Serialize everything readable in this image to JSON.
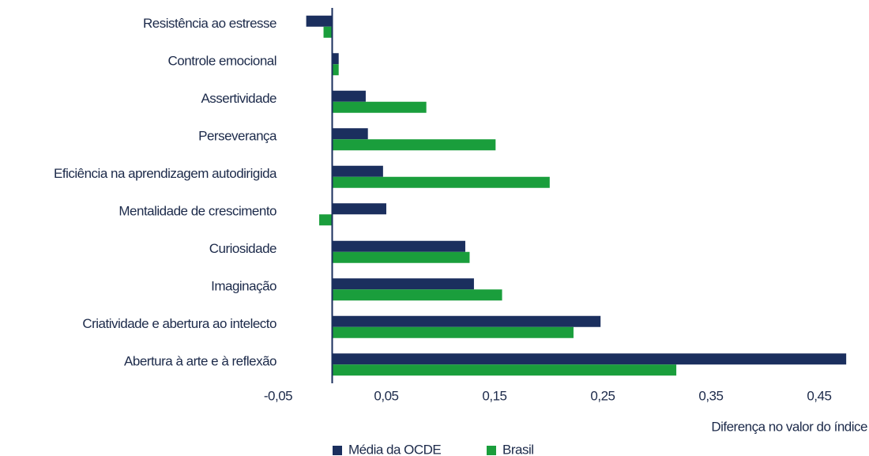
{
  "chart_data": {
    "type": "barh",
    "categories": [
      "Resistência ao estresse",
      "Controle emocional",
      "Assertividade",
      "Perseverança",
      "Eficiência na aprendizagem autodirigida",
      "Mentalidade de crescimento",
      "Curiosidade",
      "Imaginação",
      "Criatividade e abertura ao intelecto",
      "Abertura à arte e à reflexão"
    ],
    "series": [
      {
        "name": "Média da OCDE",
        "color": "#1b2f5e",
        "values": [
          -0.024,
          0.006,
          0.031,
          0.033,
          0.047,
          0.05,
          0.123,
          0.131,
          0.248,
          0.475
        ]
      },
      {
        "name": "Brasil",
        "color": "#1a9e3c",
        "values": [
          -0.008,
          0.006,
          0.087,
          0.151,
          0.201,
          -0.012,
          0.127,
          0.157,
          0.223,
          0.318
        ]
      }
    ],
    "xlim": [
      -0.05,
      0.48
    ],
    "xticks": [
      {
        "value": -0.05,
        "label": "-0,05"
      },
      {
        "value": 0.05,
        "label": "0,05"
      },
      {
        "value": 0.15,
        "label": "0,15"
      },
      {
        "value": 0.25,
        "label": "0,25"
      },
      {
        "value": 0.35,
        "label": "0,35"
      },
      {
        "value": 0.45,
        "label": "0,45"
      }
    ],
    "x_label": "Diferença no valor do índice",
    "grid": false
  }
}
